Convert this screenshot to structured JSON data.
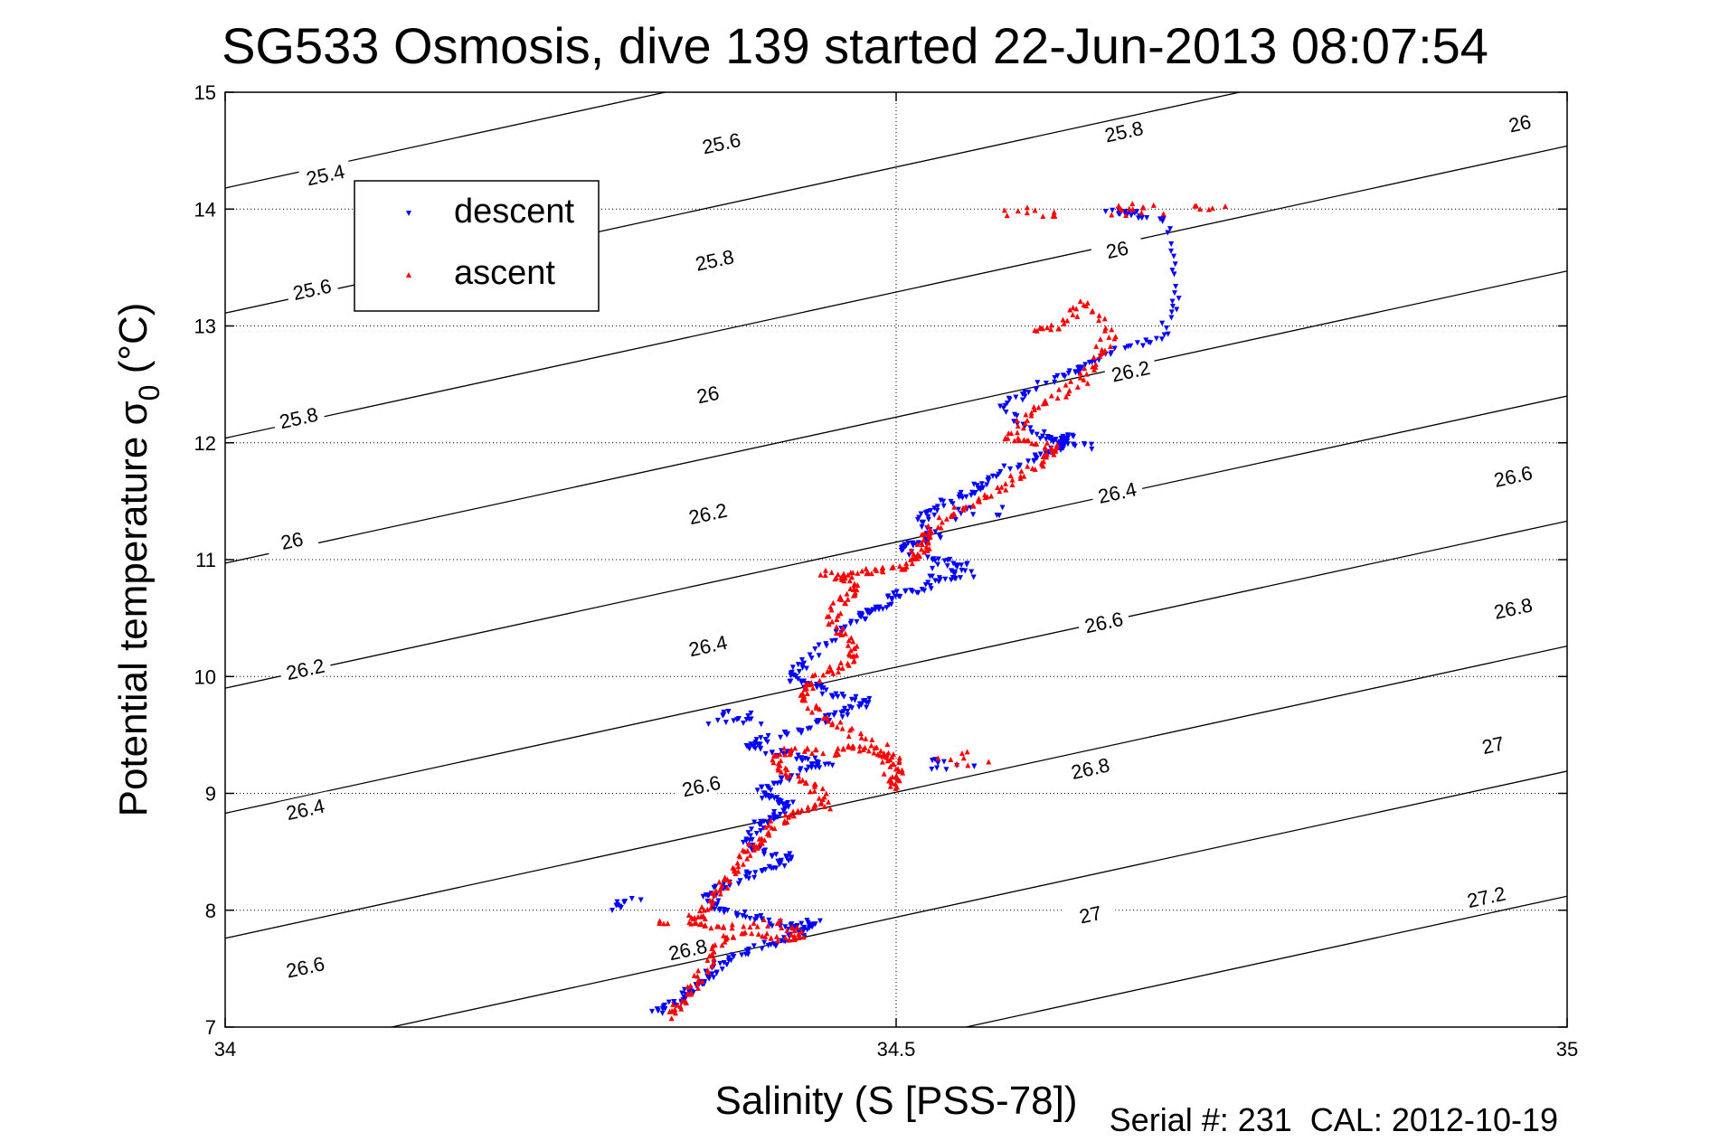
{
  "title": "SG533 Osmosis, dive 139 started 22-Jun-2013 08:07:54",
  "footer": "Serial #: 231  CAL: 2012-10-19",
  "chart_data": {
    "type": "scatter",
    "title": "SG533 Osmosis, dive 139 started 22-Jun-2013 08:07:54",
    "xlabel": "Salinity (S [PSS-78])",
    "ylabel_main": "Potential temperature σ",
    "ylabel_sub": "0",
    "ylabel_unit": " (°C)",
    "xlim": [
      34,
      35
    ],
    "ylim": [
      7,
      15
    ],
    "xticks": [
      34,
      34.5,
      35
    ],
    "xtick_labels": [
      "34",
      "34.5",
      "35"
    ],
    "yticks": [
      7,
      8,
      9,
      10,
      11,
      12,
      13,
      14,
      15
    ],
    "ytick_labels": [
      "7",
      "8",
      "9",
      "10",
      "11",
      "12",
      "13",
      "14",
      "15"
    ],
    "grid": true,
    "legend_position": "top-left",
    "colors": {
      "descent": "#0000ff",
      "ascent": "#ff0000",
      "contour": "#000000",
      "grid": "#000000"
    },
    "contour_levels": [
      25.4,
      25.6,
      25.8,
      26,
      26.2,
      26.4,
      26.6,
      26.8,
      27,
      27.2
    ],
    "contour_labels": [
      {
        "level": "25.4",
        "s": 34.075,
        "t": 14.28
      },
      {
        "level": "25.6",
        "s": 34.37,
        "t": 14.55
      },
      {
        "level": "25.8",
        "s": 34.67,
        "t": 14.65
      },
      {
        "level": "26",
        "s": 34.965,
        "t": 14.72
      },
      {
        "level": "25.6",
        "s": 34.065,
        "t": 13.3
      },
      {
        "level": "25.8",
        "s": 34.365,
        "t": 13.55
      },
      {
        "level": "26",
        "s": 34.665,
        "t": 13.64
      },
      {
        "level": "25.8",
        "s": 34.055,
        "t": 12.2
      },
      {
        "level": "26",
        "s": 34.36,
        "t": 12.4
      },
      {
        "level": "26.2",
        "s": 34.675,
        "t": 12.6
      },
      {
        "level": "26",
        "s": 34.05,
        "t": 11.15
      },
      {
        "level": "26.2",
        "s": 34.36,
        "t": 11.38
      },
      {
        "level": "26.4",
        "s": 34.665,
        "t": 11.56
      },
      {
        "level": "26.6",
        "s": 34.96,
        "t": 11.7
      },
      {
        "level": "26.2",
        "s": 34.06,
        "t": 10.05
      },
      {
        "level": "26.4",
        "s": 34.36,
        "t": 10.25
      },
      {
        "level": "26.6",
        "s": 34.655,
        "t": 10.45
      },
      {
        "level": "26.8",
        "s": 34.96,
        "t": 10.57
      },
      {
        "level": "26.4",
        "s": 34.06,
        "t": 8.85
      },
      {
        "level": "26.6",
        "s": 34.355,
        "t": 9.05
      },
      {
        "level": "26.8",
        "s": 34.645,
        "t": 9.2
      },
      {
        "level": "27",
        "s": 34.945,
        "t": 9.4
      },
      {
        "level": "26.6",
        "s": 34.06,
        "t": 7.5
      },
      {
        "level": "26.8",
        "s": 34.345,
        "t": 7.65
      },
      {
        "level": "27",
        "s": 34.645,
        "t": 7.95
      },
      {
        "level": "27.2",
        "s": 34.94,
        "t": 8.1
      }
    ],
    "series": [
      {
        "name": "descent",
        "marker": "triangle-down",
        "path": [
          [
            34.68,
            13.95
          ],
          [
            34.66,
            13.98
          ],
          [
            34.7,
            13.9
          ],
          [
            34.71,
            13.3
          ],
          [
            34.7,
            12.9
          ],
          [
            34.67,
            12.8
          ],
          [
            34.64,
            12.65
          ],
          [
            34.63,
            12.6
          ],
          [
            34.6,
            12.45
          ],
          [
            34.58,
            12.3
          ],
          [
            34.6,
            12.1
          ],
          [
            34.62,
            12.0
          ],
          [
            34.63,
            12.05
          ],
          [
            34.62,
            11.95
          ],
          [
            34.6,
            11.85
          ],
          [
            34.57,
            11.7
          ],
          [
            34.56,
            11.6
          ],
          [
            34.55,
            11.55
          ],
          [
            34.53,
            11.45
          ],
          [
            34.52,
            11.35
          ],
          [
            34.53,
            11.2
          ],
          [
            34.52,
            11.15
          ],
          [
            34.5,
            11.1
          ],
          [
            34.53,
            11.0
          ],
          [
            34.55,
            10.95
          ],
          [
            34.54,
            10.85
          ],
          [
            34.52,
            10.75
          ],
          [
            34.5,
            10.7
          ],
          [
            34.49,
            10.6
          ],
          [
            34.48,
            10.55
          ],
          [
            34.47,
            10.5
          ],
          [
            34.45,
            10.3
          ],
          [
            34.43,
            10.1
          ],
          [
            34.42,
            10.0
          ],
          [
            34.43,
            9.95
          ],
          [
            34.45,
            9.85
          ],
          [
            34.48,
            9.8
          ],
          [
            34.47,
            9.72
          ],
          [
            34.45,
            9.65
          ],
          [
            34.43,
            9.55
          ],
          [
            34.4,
            9.45
          ],
          [
            34.39,
            9.4
          ],
          [
            34.41,
            9.35
          ],
          [
            34.43,
            9.3
          ],
          [
            34.45,
            9.25
          ],
          [
            34.43,
            9.2
          ],
          [
            34.41,
            9.1
          ],
          [
            34.4,
            9.0
          ],
          [
            34.41,
            8.95
          ],
          [
            34.42,
            8.9
          ],
          [
            34.41,
            8.8
          ],
          [
            34.4,
            8.75
          ],
          [
            34.39,
            8.6
          ],
          [
            34.4,
            8.5
          ],
          [
            34.42,
            8.45
          ],
          [
            34.41,
            8.38
          ],
          [
            34.39,
            8.3
          ],
          [
            34.37,
            8.2
          ],
          [
            34.36,
            8.1
          ],
          [
            34.37,
            8.0
          ],
          [
            34.39,
            7.95
          ],
          [
            34.41,
            7.88
          ],
          [
            34.43,
            7.85
          ],
          [
            34.44,
            7.9
          ],
          [
            34.43,
            7.8
          ],
          [
            34.41,
            7.72
          ],
          [
            34.39,
            7.65
          ],
          [
            34.37,
            7.55
          ],
          [
            34.36,
            7.45
          ],
          [
            34.35,
            7.35
          ],
          [
            34.34,
            7.25
          ],
          [
            34.33,
            7.18
          ],
          [
            34.32,
            7.12
          ]
        ],
        "clusters": [
          {
            "s": 34.29,
            "t": 8.05,
            "n": 10
          },
          {
            "s": 34.38,
            "t": 9.65,
            "n": 18
          },
          {
            "s": 34.54,
            "t": 9.25,
            "n": 10
          },
          {
            "s": 34.56,
            "t": 11.4,
            "n": 10
          },
          {
            "s": 34.63,
            "t": 12.0,
            "n": 14
          },
          {
            "s": 34.54,
            "t": 10.9,
            "n": 10
          }
        ]
      },
      {
        "name": "ascent",
        "marker": "triangle-up",
        "path": [
          [
            34.33,
            7.1
          ],
          [
            34.34,
            7.2
          ],
          [
            34.35,
            7.35
          ],
          [
            34.36,
            7.55
          ],
          [
            34.37,
            7.75
          ],
          [
            34.39,
            7.8
          ],
          [
            34.42,
            7.75
          ],
          [
            34.43,
            7.8
          ],
          [
            34.41,
            7.9
          ],
          [
            34.37,
            7.85
          ],
          [
            34.35,
            7.9
          ],
          [
            34.36,
            8.05
          ],
          [
            34.37,
            8.2
          ],
          [
            34.38,
            8.35
          ],
          [
            34.39,
            8.5
          ],
          [
            34.4,
            8.6
          ],
          [
            34.41,
            8.75
          ],
          [
            34.43,
            8.85
          ],
          [
            34.45,
            8.9
          ],
          [
            34.44,
            9.05
          ],
          [
            34.42,
            9.15
          ],
          [
            34.41,
            9.3
          ],
          [
            34.42,
            9.38
          ],
          [
            34.45,
            9.35
          ],
          [
            34.47,
            9.4
          ],
          [
            34.49,
            9.35
          ],
          [
            34.5,
            9.28
          ],
          [
            34.5,
            9.15
          ],
          [
            34.5,
            9.05
          ],
          [
            34.49,
            9.4
          ],
          [
            34.46,
            9.55
          ],
          [
            34.44,
            9.7
          ],
          [
            34.43,
            9.85
          ],
          [
            34.44,
            10.0
          ],
          [
            34.46,
            10.1
          ],
          [
            34.47,
            10.2
          ],
          [
            34.46,
            10.35
          ],
          [
            34.45,
            10.5
          ],
          [
            34.46,
            10.65
          ],
          [
            34.47,
            10.75
          ],
          [
            34.46,
            10.85
          ],
          [
            34.48,
            10.9
          ],
          [
            34.5,
            10.92
          ],
          [
            34.51,
            11.0
          ],
          [
            34.52,
            11.1
          ],
          [
            34.52,
            11.2
          ],
          [
            34.53,
            11.3
          ],
          [
            34.55,
            11.45
          ],
          [
            34.57,
            11.55
          ],
          [
            34.59,
            11.7
          ],
          [
            34.61,
            11.85
          ],
          [
            34.62,
            11.95
          ],
          [
            34.6,
            12.0
          ],
          [
            34.58,
            12.05
          ],
          [
            34.6,
            12.25
          ],
          [
            34.62,
            12.4
          ],
          [
            34.64,
            12.55
          ],
          [
            34.65,
            12.75
          ],
          [
            34.66,
            12.95
          ],
          [
            34.64,
            13.2
          ],
          [
            34.62,
            13.0
          ],
          [
            34.6,
            12.95
          ]
        ],
        "clusters": [
          {
            "s": 34.68,
            "t": 14.0,
            "n": 14
          },
          {
            "s": 34.6,
            "t": 14.0,
            "n": 10
          },
          {
            "s": 34.74,
            "t": 14.0,
            "n": 6
          },
          {
            "s": 34.55,
            "t": 9.3,
            "n": 8
          },
          {
            "s": 34.34,
            "t": 7.9,
            "n": 10
          },
          {
            "s": 34.46,
            "t": 10.85,
            "n": 10
          }
        ]
      }
    ]
  }
}
